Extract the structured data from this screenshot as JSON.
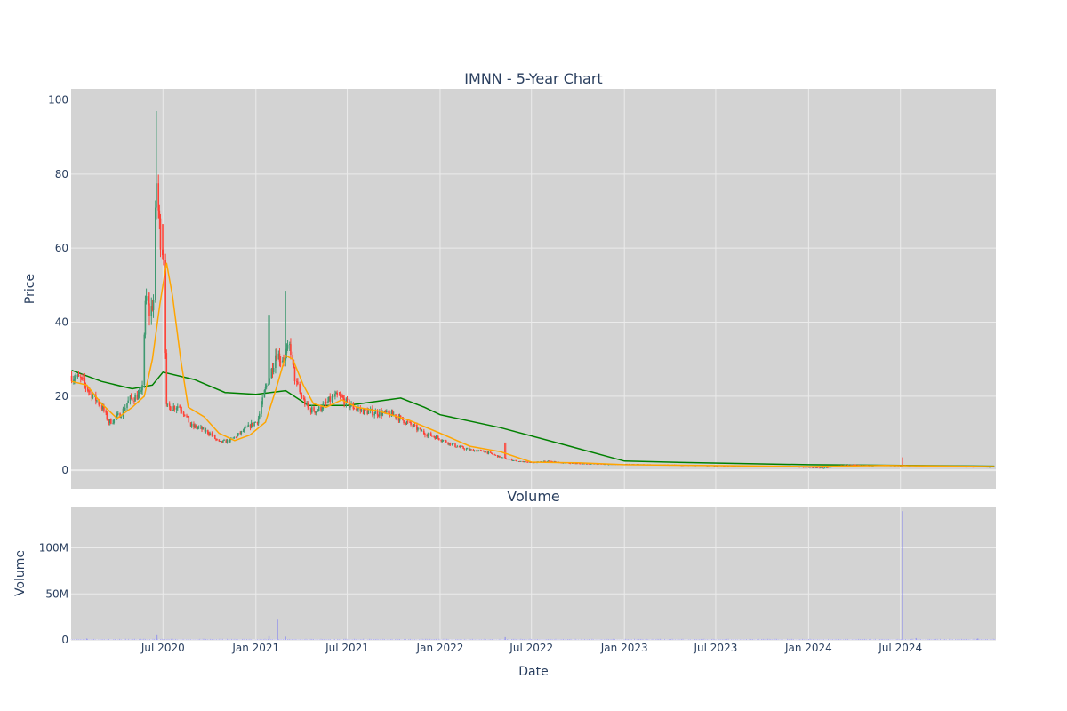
{
  "colors": {
    "plot_bg": "#d3d3d3",
    "grid": "#ebebeb",
    "up": "#3d9970",
    "down": "#ff4136",
    "ma_short": "#ffa500",
    "ma_long": "#008000",
    "volume": "#8888ee",
    "text": "#2a3f5f"
  },
  "chart_data": [
    {
      "type": "candlestick",
      "title": "IMNN - 5-Year Chart",
      "xlabel": "",
      "ylabel": "Price",
      "x_range": [
        "2020-01-01",
        "2025-01-06"
      ],
      "ylim": [
        -5,
        103
      ],
      "y_ticks": [
        0,
        20,
        40,
        60,
        80,
        100
      ],
      "grid": true,
      "series": [
        {
          "kind": "close",
          "points": [
            [
              "2020-01-02",
              25.5
            ],
            [
              "2020-01-20",
              24.5
            ],
            [
              "2020-02-05",
              21.5
            ],
            [
              "2020-02-20",
              19.0
            ],
            [
              "2020-03-05",
              16.5
            ],
            [
              "2020-03-15",
              13.0
            ],
            [
              "2020-03-25",
              13.5
            ],
            [
              "2020-04-10",
              15.5
            ],
            [
              "2020-04-25",
              19.0
            ],
            [
              "2020-05-10",
              20.0
            ],
            [
              "2020-05-20",
              20.5
            ],
            [
              "2020-05-28",
              47.0
            ],
            [
              "2020-06-05",
              42.0
            ],
            [
              "2020-06-12",
              46.0
            ],
            [
              "2020-06-18",
              78.0
            ],
            [
              "2020-06-25",
              64.0
            ],
            [
              "2020-07-03",
              58.0
            ],
            [
              "2020-07-08",
              17.0
            ],
            [
              "2020-07-20",
              17.0
            ],
            [
              "2020-08-01",
              17.5
            ],
            [
              "2020-08-15",
              15.0
            ],
            [
              "2020-08-25",
              12.0
            ],
            [
              "2020-09-10",
              11.5
            ],
            [
              "2020-10-01",
              10.0
            ],
            [
              "2020-10-20",
              7.5
            ],
            [
              "2020-11-10",
              8.0
            ],
            [
              "2020-12-01",
              10.0
            ],
            [
              "2020-12-20",
              12.0
            ],
            [
              "2021-01-05",
              13.5
            ],
            [
              "2021-01-20",
              22.0
            ],
            [
              "2021-02-01",
              27.0
            ],
            [
              "2021-02-10",
              32.0
            ],
            [
              "2021-02-20",
              30.0
            ],
            [
              "2021-03-01",
              31.0
            ],
            [
              "2021-03-10",
              33.5
            ],
            [
              "2021-03-20",
              24.0
            ],
            [
              "2021-04-01",
              20.0
            ],
            [
              "2021-04-15",
              16.5
            ],
            [
              "2021-05-01",
              16.0
            ],
            [
              "2021-05-20",
              18.0
            ],
            [
              "2021-06-05",
              20.0
            ],
            [
              "2021-06-20",
              19.5
            ],
            [
              "2021-07-05",
              17.5
            ],
            [
              "2021-08-01",
              16.0
            ],
            [
              "2021-09-01",
              15.5
            ],
            [
              "2021-10-01",
              15.0
            ],
            [
              "2021-11-01",
              12.5
            ],
            [
              "2021-12-01",
              10.0
            ],
            [
              "2022-01-01",
              8.5
            ],
            [
              "2022-02-01",
              6.5
            ],
            [
              "2022-03-01",
              5.5
            ],
            [
              "2022-04-01",
              5.0
            ],
            [
              "2022-05-01",
              3.5
            ],
            [
              "2022-06-01",
              2.5
            ],
            [
              "2022-07-01",
              2.0
            ],
            [
              "2022-08-01",
              2.5
            ],
            [
              "2022-09-01",
              2.0
            ],
            [
              "2022-10-01",
              1.8
            ],
            [
              "2022-11-01",
              1.7
            ],
            [
              "2022-12-01",
              1.6
            ],
            [
              "2023-01-01",
              1.6
            ],
            [
              "2023-03-01",
              1.5
            ],
            [
              "2023-06-01",
              1.3
            ],
            [
              "2023-09-01",
              1.1
            ],
            [
              "2023-12-01",
              1.0
            ],
            [
              "2024-02-01",
              0.6
            ],
            [
              "2024-03-15",
              1.5
            ],
            [
              "2024-05-01",
              1.3
            ],
            [
              "2024-07-01",
              1.2
            ],
            [
              "2024-07-10",
              1.3
            ],
            [
              "2024-09-01",
              1.1
            ],
            [
              "2024-11-01",
              1.0
            ],
            [
              "2025-01-03",
              0.9
            ]
          ]
        },
        {
          "kind": "spike_highs",
          "points": [
            [
              "2020-06-03",
              48.0
            ],
            [
              "2020-06-15",
              53.0
            ],
            [
              "2020-06-19",
              97.0
            ],
            [
              "2020-06-22",
              79.0
            ],
            [
              "2020-07-01",
              66.5
            ],
            [
              "2020-07-08",
              22.5
            ],
            [
              "2021-01-27",
              42.0
            ],
            [
              "2021-02-13",
              52.0
            ],
            [
              "2021-03-01",
              48.5
            ],
            [
              "2022-05-10",
              7.5
            ],
            [
              "2024-07-05",
              3.5
            ]
          ]
        },
        {
          "name": "",
          "kind": "ma_short",
          "points": [
            [
              "2020-01-02",
              24.0
            ],
            [
              "2020-02-01",
              23.0
            ],
            [
              "2020-03-01",
              18.0
            ],
            [
              "2020-04-01",
              14.0
            ],
            [
              "2020-05-01",
              17.0
            ],
            [
              "2020-05-25",
              20.0
            ],
            [
              "2020-06-10",
              30.0
            ],
            [
              "2020-06-25",
              45.0
            ],
            [
              "2020-07-08",
              56.0
            ],
            [
              "2020-07-20",
              47.0
            ],
            [
              "2020-08-05",
              30.0
            ],
            [
              "2020-08-20",
              17.0
            ],
            [
              "2020-09-20",
              14.5
            ],
            [
              "2020-10-20",
              10.0
            ],
            [
              "2020-11-20",
              8.0
            ],
            [
              "2020-12-20",
              9.5
            ],
            [
              "2021-01-20",
              13.0
            ],
            [
              "2021-02-10",
              22.0
            ],
            [
              "2021-03-01",
              31.0
            ],
            [
              "2021-03-15",
              30.0
            ],
            [
              "2021-04-05",
              23.0
            ],
            [
              "2021-04-25",
              18.0
            ],
            [
              "2021-05-20",
              17.0
            ],
            [
              "2021-06-20",
              19.0
            ],
            [
              "2021-07-20",
              17.0
            ],
            [
              "2021-09-01",
              16.0
            ],
            [
              "2021-11-01",
              13.5
            ],
            [
              "2022-01-01",
              10.0
            ],
            [
              "2022-03-01",
              6.5
            ],
            [
              "2022-05-01",
              5.0
            ],
            [
              "2022-07-01",
              2.2
            ],
            [
              "2022-10-01",
              2.0
            ],
            [
              "2023-01-01",
              1.5
            ],
            [
              "2023-06-01",
              1.3
            ],
            [
              "2024-01-01",
              1.0
            ],
            [
              "2024-06-01",
              1.3
            ],
            [
              "2025-01-03",
              1.0
            ]
          ]
        },
        {
          "name": "",
          "kind": "ma_long",
          "points": [
            [
              "2020-01-02",
              27.0
            ],
            [
              "2020-03-01",
              24.0
            ],
            [
              "2020-05-01",
              22.0
            ],
            [
              "2020-06-10",
              23.0
            ],
            [
              "2020-07-01",
              26.5
            ],
            [
              "2020-09-01",
              24.5
            ],
            [
              "2020-11-01",
              21.0
            ],
            [
              "2021-01-01",
              20.5
            ],
            [
              "2021-03-01",
              21.5
            ],
            [
              "2021-04-15",
              17.5
            ],
            [
              "2021-07-01",
              17.5
            ],
            [
              "2021-10-15",
              19.5
            ],
            [
              "2021-12-01",
              17.0
            ],
            [
              "2022-01-01",
              15.0
            ],
            [
              "2022-05-01",
              11.5
            ],
            [
              "2022-09-01",
              7.0
            ],
            [
              "2023-01-01",
              2.5
            ],
            [
              "2023-06-01",
              2.0
            ],
            [
              "2024-01-01",
              1.5
            ],
            [
              "2025-01-03",
              1.1
            ]
          ]
        }
      ]
    },
    {
      "type": "bar",
      "title": "Volume",
      "xlabel": "Date",
      "ylabel": "Volume",
      "x_ticks": [
        "Jul 2020",
        "Jan 2021",
        "Jul 2021",
        "Jan 2022",
        "Jul 2022",
        "Jan 2023",
        "Jul 2023",
        "Jan 2024",
        "Jul 2024"
      ],
      "x_tick_dates": [
        "2020-07-01",
        "2021-01-01",
        "2021-07-01",
        "2022-01-01",
        "2022-07-01",
        "2023-01-01",
        "2023-07-01",
        "2024-01-01",
        "2024-07-01"
      ],
      "ylim": [
        0,
        145000000
      ],
      "y_ticks": [
        0,
        50000000,
        100000000
      ],
      "y_tick_labels": [
        "0",
        "50M",
        "100M"
      ],
      "grid": true,
      "points": [
        [
          "2020-02-01",
          1500000
        ],
        [
          "2020-06-19",
          6000000
        ],
        [
          "2021-01-27",
          4000000
        ],
        [
          "2021-02-13",
          22000000
        ],
        [
          "2021-03-01",
          3500000
        ],
        [
          "2022-05-10",
          3000000
        ],
        [
          "2024-03-15",
          1200000
        ],
        [
          "2024-07-05",
          140000000
        ],
        [
          "2024-08-01",
          2000000
        ],
        [
          "2024-12-01",
          1500000
        ]
      ]
    }
  ]
}
